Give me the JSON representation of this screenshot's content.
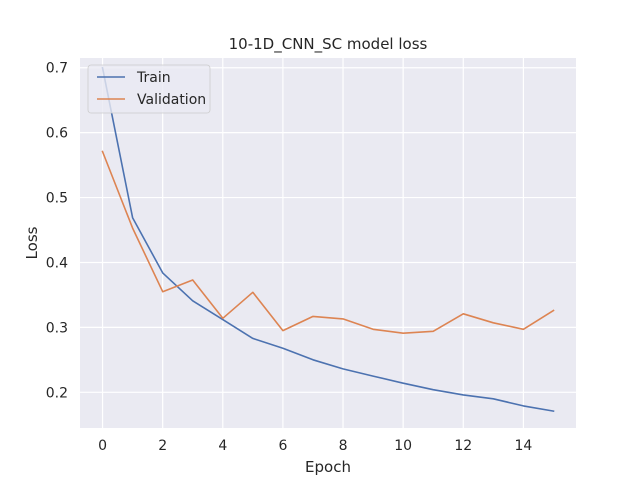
{
  "chart_data": {
    "type": "line",
    "title": "10-1D_CNN_SC model loss",
    "xlabel": "Epoch",
    "ylabel": "Loss",
    "x": [
      0,
      1,
      2,
      3,
      4,
      5,
      6,
      7,
      8,
      9,
      10,
      11,
      12,
      13,
      14,
      15
    ],
    "xlim": [
      -0.75,
      15.75
    ],
    "ylim": [
      0.145,
      0.715
    ],
    "xticks": [
      0,
      2,
      4,
      6,
      8,
      10,
      12,
      14
    ],
    "yticks": [
      0.2,
      0.3,
      0.4,
      0.5,
      0.6,
      0.7
    ],
    "xtick_labels": [
      "0",
      "2",
      "4",
      "6",
      "8",
      "10",
      "12",
      "14"
    ],
    "ytick_labels": [
      "0.2",
      "0.3",
      "0.4",
      "0.5",
      "0.6",
      "0.7"
    ],
    "grid": true,
    "legend_position": "top-left",
    "background_color": "#eaeaf2",
    "series": [
      {
        "name": "Train",
        "color": "#4c72b0",
        "values": [
          0.7,
          0.469,
          0.384,
          0.341,
          0.312,
          0.283,
          0.268,
          0.25,
          0.236,
          0.225,
          0.214,
          0.204,
          0.196,
          0.19,
          0.179,
          0.171
        ]
      },
      {
        "name": "Validation",
        "color": "#dd8452",
        "values": [
          0.571,
          0.453,
          0.355,
          0.373,
          0.314,
          0.354,
          0.295,
          0.317,
          0.313,
          0.297,
          0.291,
          0.294,
          0.321,
          0.307,
          0.297,
          0.326
        ]
      }
    ]
  }
}
